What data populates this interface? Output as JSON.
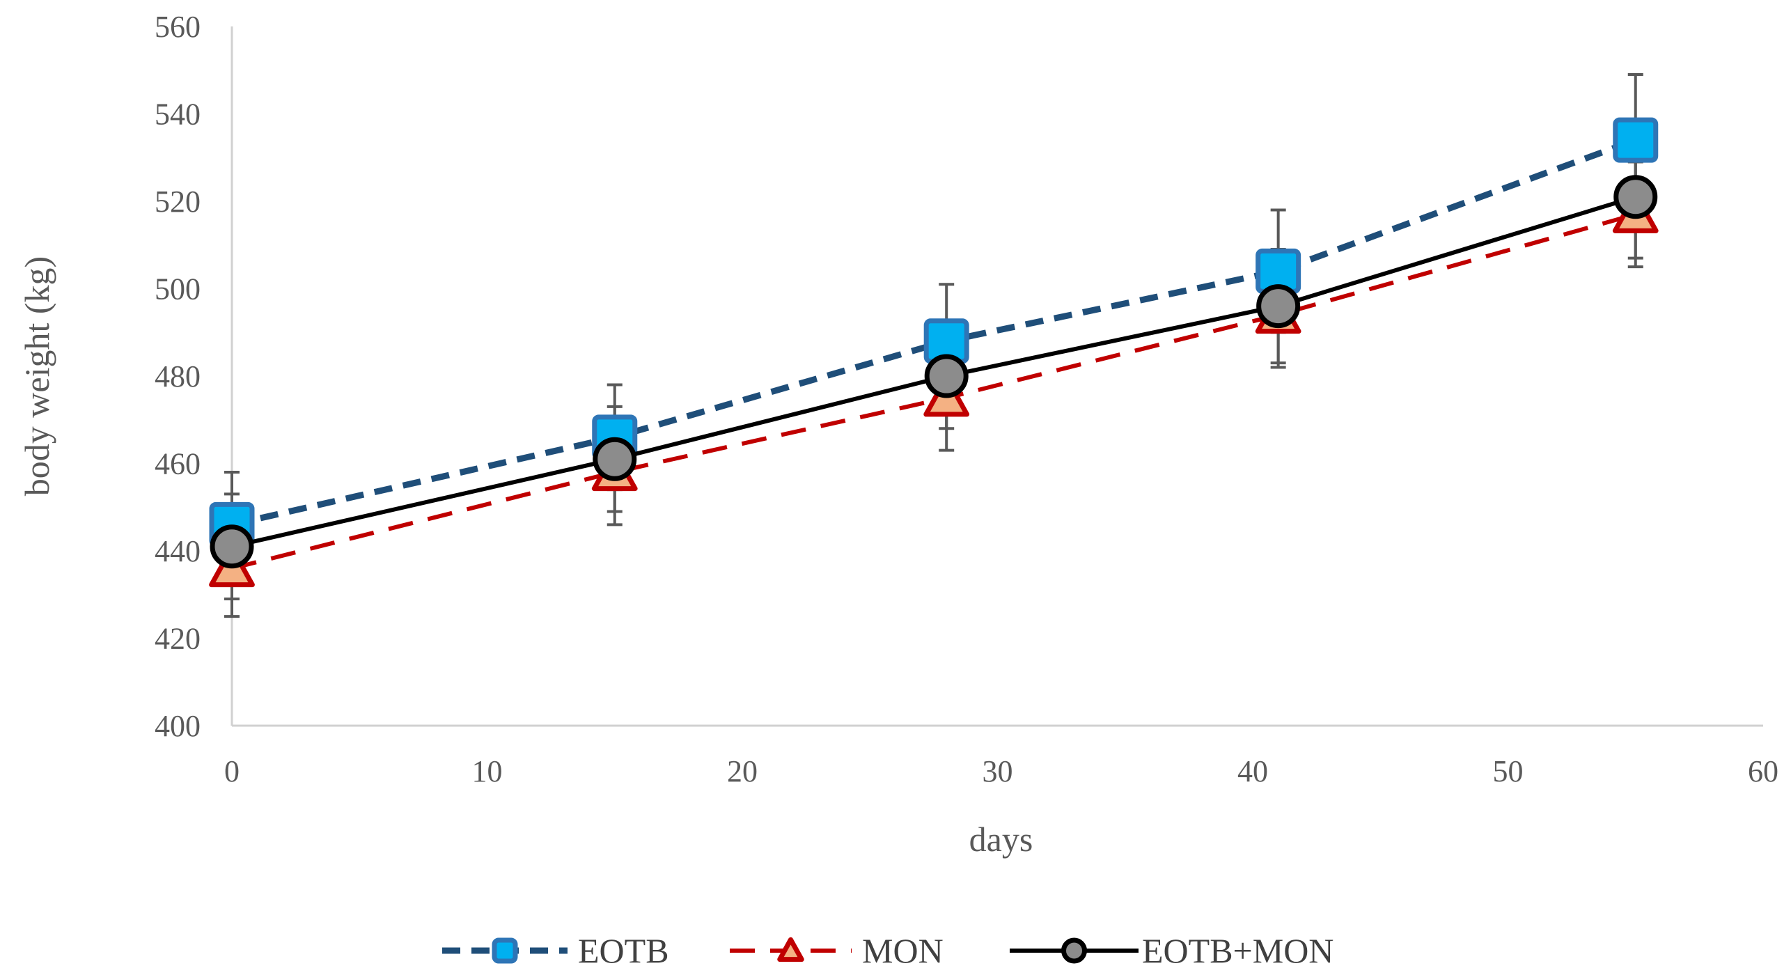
{
  "chart_data": {
    "type": "line",
    "title": "",
    "xlabel": "days",
    "ylabel": "body weight (kg)",
    "xlim": [
      0,
      60
    ],
    "ylim": [
      400,
      560
    ],
    "xticks": [
      0,
      10,
      20,
      30,
      40,
      50,
      60
    ],
    "yticks": [
      400,
      420,
      440,
      460,
      480,
      500,
      520,
      540,
      560
    ],
    "xtick_labels": [
      "0",
      "10",
      "20",
      "30",
      "40",
      "50",
      "60"
    ],
    "ytick_labels": [
      "400",
      "420",
      "440",
      "460",
      "480",
      "500",
      "520",
      "540",
      "560"
    ],
    "grid": false,
    "legend_position": "bottom",
    "x": [
      0,
      15,
      28,
      41,
      55
    ],
    "series": [
      {
        "name": "EOTB",
        "values": [
          446,
          466,
          488,
          504,
          534
        ],
        "error": [
          12,
          12,
          13,
          14,
          15
        ],
        "line_color": "#1f4e79",
        "marker_fill": "#00b0f0",
        "marker_edge": "#2e75b6",
        "marker": "square",
        "dash": "dash"
      },
      {
        "name": "MON",
        "values": [
          436,
          458,
          475,
          494,
          517
        ],
        "error": [
          11,
          12,
          12,
          12,
          12
        ],
        "line_color": "#c00000",
        "marker_fill": "#f4b183",
        "marker_edge": "#c00000",
        "marker": "triangle",
        "dash": "longdash"
      },
      {
        "name": "EOTB+MON",
        "values": [
          441,
          461,
          480,
          496,
          521
        ],
        "error": [
          12,
          12,
          12,
          13,
          14
        ],
        "line_color": "#000000",
        "marker_fill": "#8c8c8c",
        "marker_edge": "#000000",
        "marker": "circle",
        "dash": "solid"
      }
    ]
  }
}
